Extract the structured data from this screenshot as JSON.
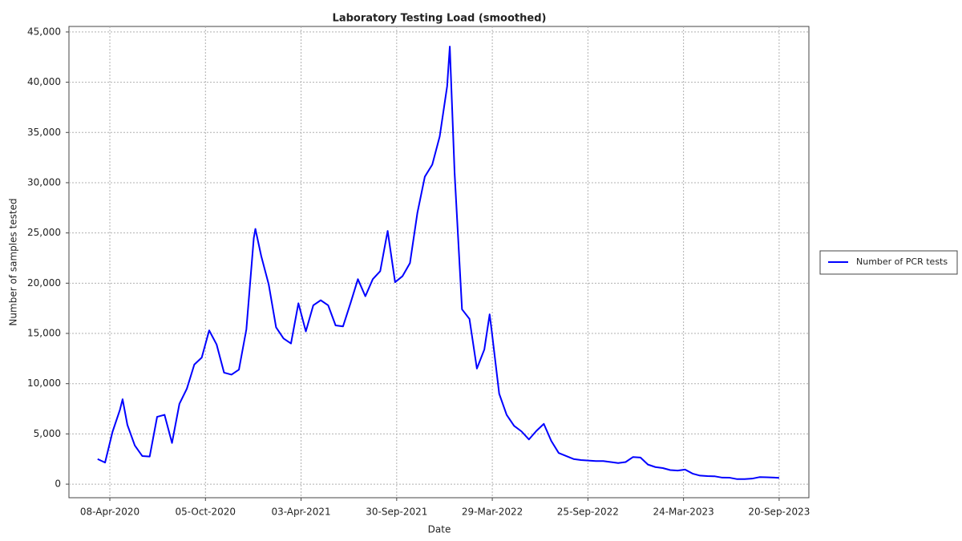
{
  "chart_data": {
    "type": "line",
    "title": "Laboratory Testing Load (smoothed)",
    "x_label": "Date",
    "y_label": "Number of samples tested",
    "grid": true,
    "legend": "outside-right",
    "xlim": [
      "2020-01-22",
      "2023-11-15"
    ],
    "ylim": [
      -1350,
      45550
    ],
    "xticks": [
      {
        "value": "2020-04-08",
        "label": "08-Apr-2020"
      },
      {
        "value": "2020-10-05",
        "label": "05-Oct-2020"
      },
      {
        "value": "2021-04-03",
        "label": "03-Apr-2021"
      },
      {
        "value": "2021-09-30",
        "label": "30-Sep-2021"
      },
      {
        "value": "2022-03-29",
        "label": "29-Mar-2022"
      },
      {
        "value": "2022-09-25",
        "label": "25-Sep-2022"
      },
      {
        "value": "2023-03-24",
        "label": "24-Mar-2023"
      },
      {
        "value": "2023-09-20",
        "label": "20-Sep-2023"
      }
    ],
    "yticks": [
      0,
      {
        "value": 5000,
        "label": "5,000"
      },
      {
        "value": 10000,
        "label": "10,000"
      },
      {
        "value": 15000,
        "label": "15,000"
      },
      {
        "value": 20000,
        "label": "20,000"
      },
      {
        "value": 25000,
        "label": "25,000"
      },
      {
        "value": 30000,
        "label": "30,000"
      },
      {
        "value": 35000,
        "label": "35,000"
      },
      {
        "value": 40000,
        "label": "40,000"
      },
      {
        "value": 45000,
        "label": "45,000"
      }
    ],
    "x": [
      "2020-03-16",
      "2020-03-30",
      "2020-04-13",
      "2020-04-27",
      "2020-05-02",
      "2020-05-11",
      "2020-05-25",
      "2020-06-08",
      "2020-06-22",
      "2020-07-06",
      "2020-07-20",
      "2020-08-03",
      "2020-08-17",
      "2020-08-31",
      "2020-09-14",
      "2020-09-28",
      "2020-10-12",
      "2020-10-26",
      "2020-11-09",
      "2020-11-23",
      "2020-12-07",
      "2020-12-21",
      "2021-01-04",
      "2021-01-07",
      "2021-01-18",
      "2021-02-01",
      "2021-02-15",
      "2021-03-01",
      "2021-03-15",
      "2021-03-29",
      "2021-04-12",
      "2021-04-26",
      "2021-05-10",
      "2021-05-24",
      "2021-06-07",
      "2021-06-21",
      "2021-07-05",
      "2021-07-19",
      "2021-08-02",
      "2021-08-16",
      "2021-08-30",
      "2021-09-13",
      "2021-09-27",
      "2021-10-11",
      "2021-10-25",
      "2021-11-08",
      "2021-11-22",
      "2021-12-06",
      "2021-12-20",
      "2022-01-03",
      "2022-01-08",
      "2022-01-17",
      "2022-01-31",
      "2022-02-14",
      "2022-02-28",
      "2022-03-14",
      "2022-03-24",
      "2022-03-28",
      "2022-04-11",
      "2022-04-25",
      "2022-05-09",
      "2022-05-23",
      "2022-06-06",
      "2022-06-20",
      "2022-07-04",
      "2022-07-18",
      "2022-08-01",
      "2022-08-15",
      "2022-08-29",
      "2022-09-12",
      "2022-09-26",
      "2022-10-10",
      "2022-10-24",
      "2022-11-07",
      "2022-11-21",
      "2022-12-05",
      "2022-12-19",
      "2023-01-02",
      "2023-01-16",
      "2023-01-30",
      "2023-02-13",
      "2023-02-27",
      "2023-03-13",
      "2023-03-27",
      "2023-04-10",
      "2023-04-24",
      "2023-05-08",
      "2023-05-22",
      "2023-06-05",
      "2023-06-19",
      "2023-07-03",
      "2023-07-17",
      "2023-07-31",
      "2023-08-14",
      "2023-08-28",
      "2023-09-11",
      "2023-09-20"
    ],
    "series": [
      {
        "name": "Number of PCR tests",
        "color": "#0000ff",
        "values": [
          2500,
          2150,
          5200,
          7400,
          8450,
          5900,
          3850,
          2800,
          2750,
          6700,
          6900,
          4100,
          8000,
          9500,
          11900,
          12600,
          15300,
          13900,
          11100,
          10900,
          11400,
          15400,
          24500,
          25400,
          22700,
          19900,
          15600,
          14500,
          14000,
          18000,
          15200,
          17800,
          18300,
          17800,
          15800,
          15700,
          18000,
          20400,
          18700,
          20400,
          21200,
          25200,
          20100,
          20700,
          22000,
          27000,
          30600,
          31800,
          34600,
          39600,
          43550,
          31000,
          17400,
          16450,
          11500,
          13400,
          16900,
          15200,
          9000,
          6900,
          5800,
          5250,
          4450,
          5300,
          6000,
          4300,
          3100,
          2800,
          2500,
          2400,
          2350,
          2300,
          2300,
          2200,
          2100,
          2200,
          2700,
          2650,
          1950,
          1700,
          1600,
          1400,
          1350,
          1450,
          1050,
          850,
          800,
          780,
          650,
          640,
          500,
          500,
          550,
          700,
          680,
          650,
          620
        ]
      }
    ]
  }
}
